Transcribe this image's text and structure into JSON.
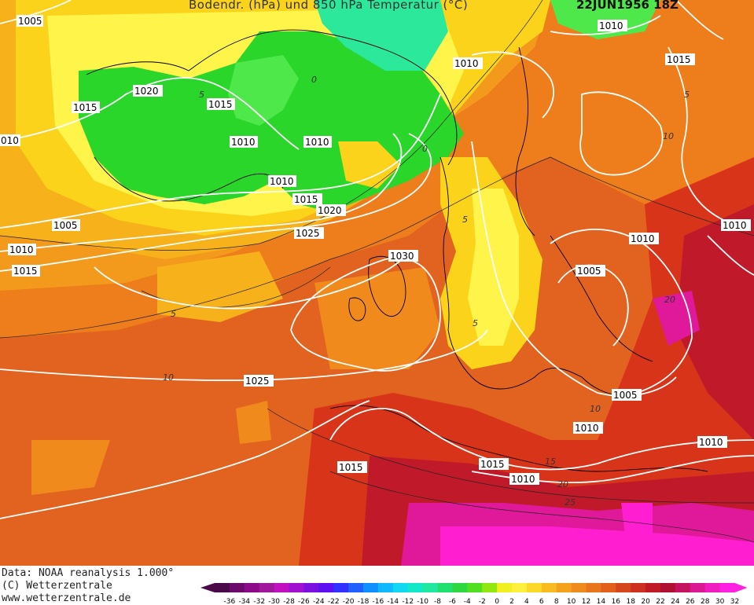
{
  "header": {
    "title": "Bodendr. (hPa) und 850 hPa Temperatur (°C)",
    "date": "22JUN1956 18Z"
  },
  "footer": {
    "line1": "Data: NOAA reanalysis 1.000°",
    "line2": "(C) Wetterzentrale",
    "line3": "www.wetterzentrale.de"
  },
  "colors": {
    "ocean_warm": "#e2631f",
    "orange": "#f08a1c",
    "light_orange": "#f7a81a",
    "yellow": "#fbd31a",
    "light_yellow": "#fff44a",
    "green": "#2ad62a",
    "bright_green": "#4fe84a",
    "teal": "#2be89a",
    "red": "#d8341a",
    "dark_red": "#b5102a",
    "magenta": "#e0189a",
    "pink": "#ff1fd0"
  },
  "legend": {
    "ticks": [
      "-36",
      "-34",
      "-32",
      "-30",
      "-28",
      "-26",
      "-24",
      "-22",
      "-20",
      "-18",
      "-16",
      "-14",
      "-12",
      "-10",
      "-8",
      "-6",
      "-4",
      "-2",
      "0",
      "2",
      "4",
      "6",
      "8",
      "10",
      "12",
      "14",
      "16",
      "18",
      "20",
      "22",
      "24",
      "26",
      "28",
      "30",
      "32"
    ],
    "colors": [
      "#4a0a4a",
      "#6a0a6a",
      "#8a0a8a",
      "#a0189a",
      "#c010c0",
      "#a010d0",
      "#7a10e0",
      "#5a10f0",
      "#3030ff",
      "#2060ff",
      "#1090ff",
      "#10b8ff",
      "#10d8f0",
      "#10e8c8",
      "#20e8a0",
      "#20e070",
      "#30d840",
      "#50e020",
      "#90e810",
      "#f0f020",
      "#fff040",
      "#fcd82a",
      "#f8bc22",
      "#f4a21c",
      "#ef8a1c",
      "#e8741c",
      "#e0601c",
      "#d6461c",
      "#cc301e",
      "#c01a26",
      "#b01032",
      "#c41460",
      "#dc1890",
      "#f01cc0",
      "#ff20e0"
    ]
  },
  "isobar_labels": [
    {
      "text": "1005"
    },
    {
      "text": "1020"
    },
    {
      "text": "1015"
    },
    {
      "text": "1015"
    },
    {
      "text": "1010"
    },
    {
      "text": "1010"
    },
    {
      "text": "010"
    },
    {
      "text": "1010"
    },
    {
      "text": "1015"
    },
    {
      "text": "1020"
    },
    {
      "text": "1005"
    },
    {
      "text": "1010"
    },
    {
      "text": "1015"
    },
    {
      "text": "1025"
    },
    {
      "text": "1030"
    },
    {
      "text": "1010"
    },
    {
      "text": "1010"
    },
    {
      "text": "1015"
    },
    {
      "text": "1010"
    },
    {
      "text": "1010"
    },
    {
      "text": "1005"
    },
    {
      "text": "1025"
    },
    {
      "text": "1005"
    },
    {
      "text": "1010"
    },
    {
      "text": "1015"
    },
    {
      "text": "1015"
    },
    {
      "text": "1010"
    },
    {
      "text": "1010"
    }
  ],
  "temp_labels": [
    {
      "text": "0"
    },
    {
      "text": "5"
    },
    {
      "text": "5"
    },
    {
      "text": "10"
    },
    {
      "text": "0"
    },
    {
      "text": "5"
    },
    {
      "text": "5"
    },
    {
      "text": "10"
    },
    {
      "text": "15"
    },
    {
      "text": "20"
    },
    {
      "text": "25"
    },
    {
      "text": "10"
    },
    {
      "text": "5"
    },
    {
      "text": "20"
    }
  ]
}
